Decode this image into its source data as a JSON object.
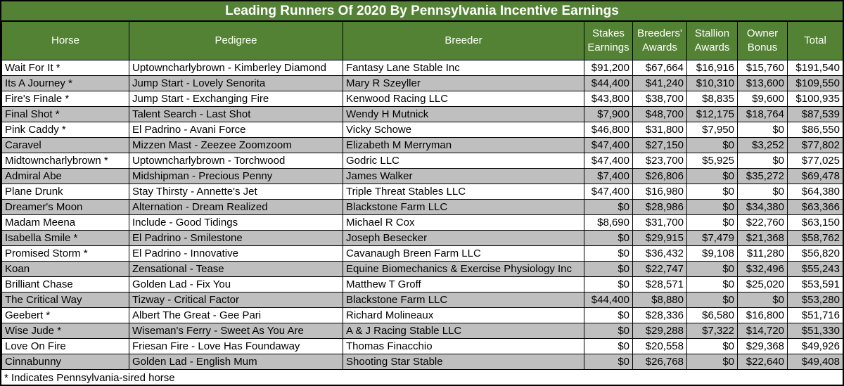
{
  "title": "Leading Runners Of 2020 By Pennsylvania Incentive Earnings",
  "footnote": "* Indicates Pennsylvania-sired horse",
  "colors": {
    "header_green": "#548235",
    "alt_row_gray": "#BFBFBF",
    "row_white": "#FFFFFF",
    "border": "#000000",
    "header_text": "#FFFFFF"
  },
  "chart_data": {
    "type": "table",
    "title": "Leading Runners Of 2020 By Pennsylvania Incentive Earnings",
    "columns": [
      "Horse",
      "Pedigree",
      "Breeder",
      "Stakes Earnings",
      "Breeders' Awards",
      "Stallion Awards",
      "Owner Bonus",
      "Total"
    ],
    "rows": [
      [
        "Wait For It *",
        "Uptowncharlybrown - Kimberley Diamond",
        "Fantasy Lane Stable Inc",
        "$91,200",
        "$67,664",
        "$16,916",
        "$15,760",
        "$191,540"
      ],
      [
        "Its A Journey *",
        "Jump Start - Lovely Senorita",
        "Mary R Szeyller",
        "$44,400",
        "$41,240",
        "$10,310",
        "$13,600",
        "$109,550"
      ],
      [
        "Fire's Finale *",
        "Jump Start - Exchanging Fire",
        "Kenwood Racing LLC",
        "$43,800",
        "$38,700",
        "$8,835",
        "$9,600",
        "$100,935"
      ],
      [
        "Final Shot *",
        "Talent Search - Last Shot",
        "Wendy H Mutnick",
        "$7,900",
        "$48,700",
        "$12,175",
        "$18,764",
        "$87,539"
      ],
      [
        "Pink Caddy *",
        "El Padrino - Avani Force",
        "Vicky Schowe",
        "$46,800",
        "$31,800",
        "$7,950",
        "$0",
        "$86,550"
      ],
      [
        "Caravel",
        "Mizzen Mast - Zeezee Zoomzoom",
        "Elizabeth M Merryman",
        "$47,400",
        "$27,150",
        "$0",
        "$3,252",
        "$77,802"
      ],
      [
        "Midtowncharlybrown *",
        "Uptowncharlybrown - Torchwood",
        "Godric LLC",
        "$47,400",
        "$23,700",
        "$5,925",
        "$0",
        "$77,025"
      ],
      [
        "Admiral Abe",
        "Midshipman - Precious Penny",
        "James Walker",
        "$7,400",
        "$26,806",
        "$0",
        "$35,272",
        "$69,478"
      ],
      [
        "Plane Drunk",
        "Stay Thirsty - Annette's Jet",
        "Triple Threat Stables LLC",
        "$47,400",
        "$16,980",
        "$0",
        "$0",
        "$64,380"
      ],
      [
        "Dreamer's Moon",
        "Alternation - Dream Realized",
        "Blackstone Farm LLC",
        "$0",
        "$28,986",
        "$0",
        "$34,380",
        "$63,366"
      ],
      [
        "Madam Meena",
        "Include - Good Tidings",
        "Michael R Cox",
        "$8,690",
        "$31,700",
        "$0",
        "$22,760",
        "$63,150"
      ],
      [
        "Isabella Smile *",
        "El Padrino - Smilestone",
        "Joseph Besecker",
        "$0",
        "$29,915",
        "$7,479",
        "$21,368",
        "$58,762"
      ],
      [
        "Promised Storm *",
        "El Padrino - Innovative",
        "Cavanaugh Breen Farm LLC",
        "$0",
        "$36,432",
        "$9,108",
        "$11,280",
        "$56,820"
      ],
      [
        "Koan",
        "Zensational - Tease",
        "Equine Biomechanics & Exercise Physiology Inc",
        "$0",
        "$22,747",
        "$0",
        "$32,496",
        "$55,243"
      ],
      [
        "Brilliant Chase",
        "Golden Lad - Fix You",
        "Matthew T Groff",
        "$0",
        "$28,571",
        "$0",
        "$25,020",
        "$53,591"
      ],
      [
        "The Critical Way",
        "Tizway - Critical Factor",
        "Blackstone Farm LLC",
        "$44,400",
        "$8,880",
        "$0",
        "$0",
        "$53,280"
      ],
      [
        "Geebert *",
        "Albert The Great - Gee Pari",
        "Richard Molineaux",
        "$0",
        "$28,336",
        "$6,580",
        "$16,800",
        "$51,716"
      ],
      [
        "Wise Jude *",
        "Wiseman's Ferry - Sweet As You Are",
        "A & J Racing Stable LLC",
        "$0",
        "$29,288",
        "$7,322",
        "$14,720",
        "$51,330"
      ],
      [
        "Love On Fire",
        "Friesan Fire - Love Has Foundaway",
        "Thomas Finacchio",
        "$0",
        "$20,558",
        "$0",
        "$29,368",
        "$49,926"
      ],
      [
        "Cinnabunny",
        "Golden Lad - English Mum",
        "Shooting Star Stable",
        "$0",
        "$26,768",
        "$0",
        "$22,640",
        "$49,408"
      ]
    ]
  }
}
